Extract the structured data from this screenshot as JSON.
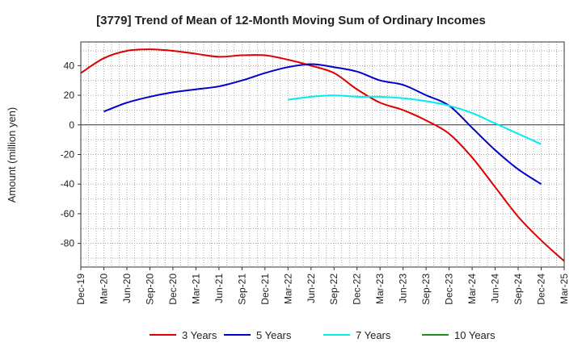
{
  "chart_data": {
    "type": "line",
    "title": "[3779]  Trend of Mean of 12-Month Moving Sum of Ordinary Incomes",
    "xlabel": "",
    "ylabel": "Amount (million yen)",
    "x_ticks": [
      "Dec-19",
      "Mar-20",
      "Jun-20",
      "Sep-20",
      "Dec-20",
      "Mar-21",
      "Jun-21",
      "Sep-21",
      "Dec-21",
      "Mar-22",
      "Jun-22",
      "Sep-22",
      "Dec-22",
      "Mar-23",
      "Jun-23",
      "Sep-23",
      "Dec-23",
      "Mar-24",
      "Jun-24",
      "Sep-24",
      "Dec-24",
      "Mar-25"
    ],
    "y_ticks": [
      40,
      20,
      0,
      -20,
      -40,
      -60,
      -80
    ],
    "ylim": [
      -96,
      56
    ],
    "grid": true,
    "legend_position": "bottom",
    "series": [
      {
        "name": "3 Years",
        "color": "#dd0000",
        "points": [
          [
            0,
            35
          ],
          [
            1,
            45
          ],
          [
            2,
            50
          ],
          [
            3,
            51
          ],
          [
            4,
            50
          ],
          [
            5,
            48
          ],
          [
            6,
            46
          ],
          [
            7,
            47
          ],
          [
            8,
            47
          ],
          [
            9,
            44
          ],
          [
            10,
            40
          ],
          [
            11,
            35
          ],
          [
            12,
            24
          ],
          [
            13,
            15
          ],
          [
            14,
            10
          ],
          [
            15,
            3
          ],
          [
            16,
            -6
          ],
          [
            17,
            -22
          ],
          [
            18,
            -42
          ],
          [
            19,
            -62
          ],
          [
            20,
            -78
          ],
          [
            21,
            -92
          ]
        ]
      },
      {
        "name": "5 Years",
        "color": "#0000cc",
        "points": [
          [
            1,
            9
          ],
          [
            2,
            15
          ],
          [
            3,
            19
          ],
          [
            4,
            22
          ],
          [
            5,
            24
          ],
          [
            6,
            26
          ],
          [
            7,
            30
          ],
          [
            8,
            35
          ],
          [
            9,
            39
          ],
          [
            10,
            41
          ],
          [
            11,
            39
          ],
          [
            12,
            36
          ],
          [
            13,
            30
          ],
          [
            14,
            27
          ],
          [
            15,
            20
          ],
          [
            16,
            13
          ],
          [
            17,
            -2
          ],
          [
            18,
            -17
          ],
          [
            19,
            -30
          ],
          [
            20,
            -40
          ]
        ]
      },
      {
        "name": "7 Years",
        "color": "#00eeee",
        "points": [
          [
            9,
            17
          ],
          [
            10,
            19
          ],
          [
            11,
            20
          ],
          [
            12,
            19
          ],
          [
            13,
            19
          ],
          [
            14,
            18
          ],
          [
            15,
            16
          ],
          [
            16,
            13
          ],
          [
            17,
            8
          ],
          [
            18,
            1
          ],
          [
            19,
            -6
          ],
          [
            20,
            -13
          ]
        ]
      },
      {
        "name": "10 Years",
        "color": "#228822",
        "points": []
      }
    ]
  }
}
